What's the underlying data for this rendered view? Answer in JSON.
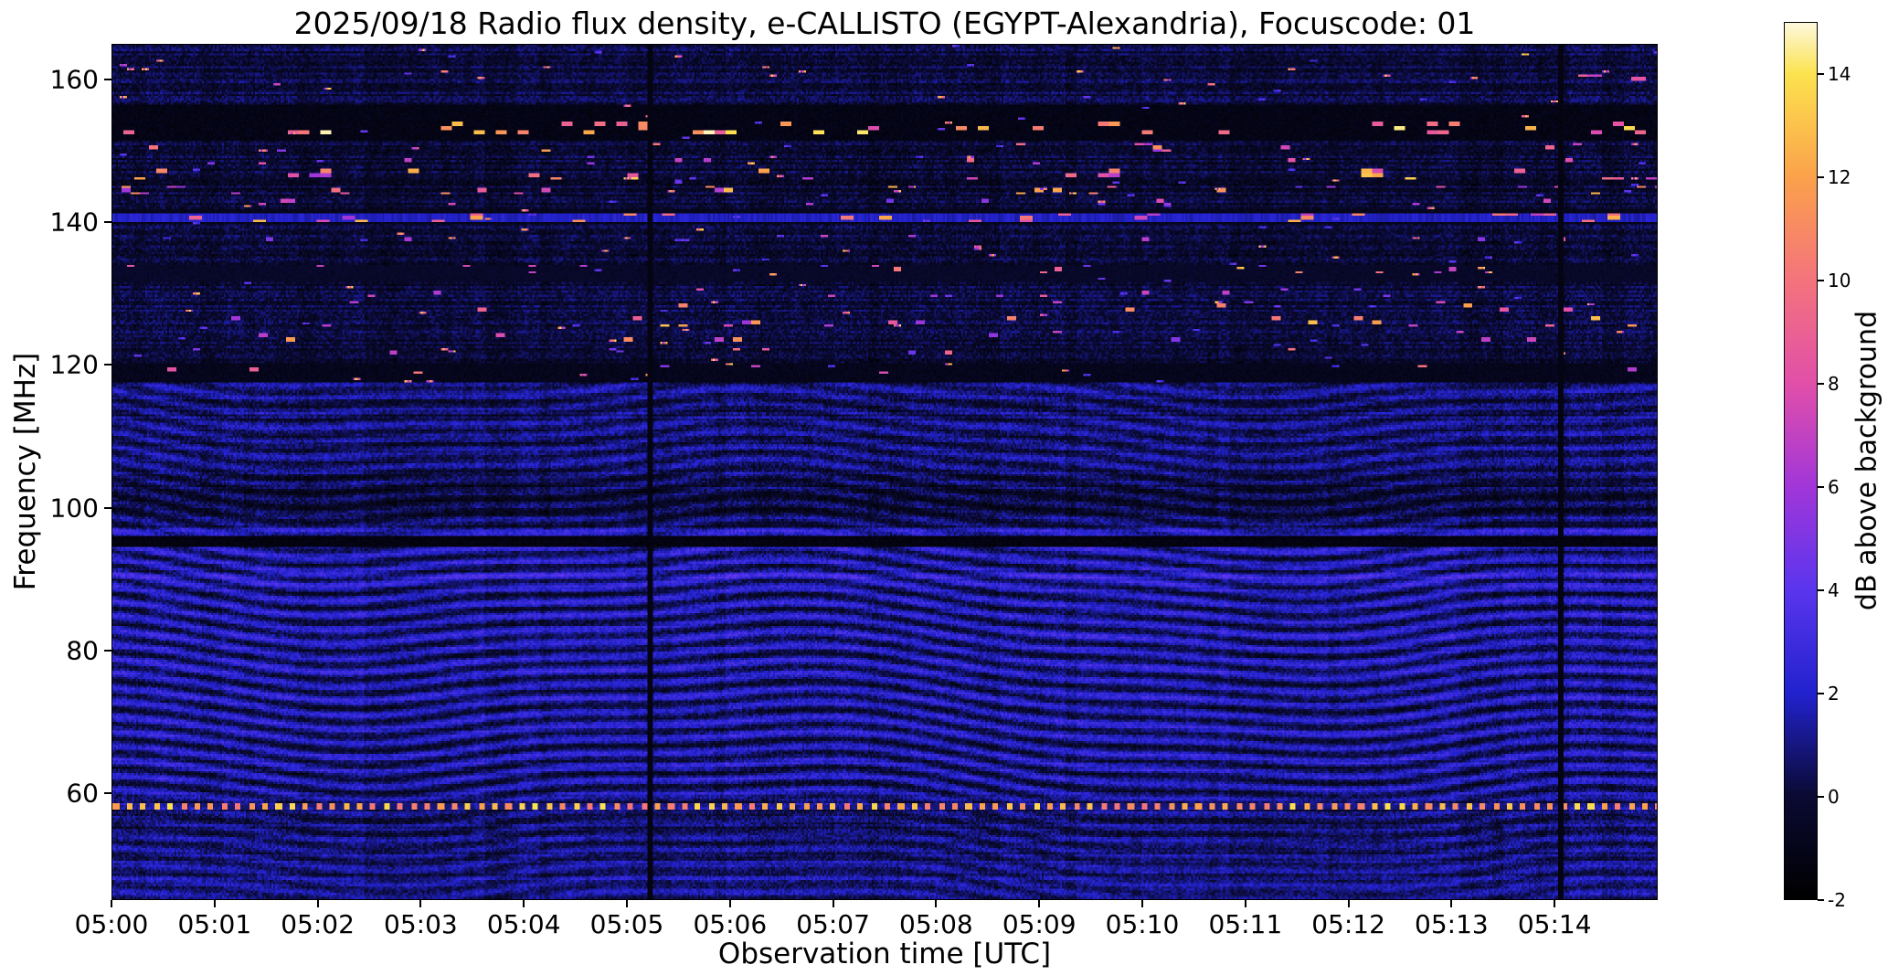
{
  "chart_data": {
    "type": "heatmap",
    "title": "2025/09/18  Radio flux density, e-CALLISTO (EGYPT-Alexandria), Focuscode: 01",
    "xlabel": "Observation time [UTC]",
    "ylabel": "Frequency [MHz]",
    "x_range_minutes": [
      0,
      15
    ],
    "y_range_mhz": [
      45,
      165
    ],
    "x_ticks": [
      {
        "t": 0,
        "label": "05:00"
      },
      {
        "t": 1,
        "label": "05:01"
      },
      {
        "t": 2,
        "label": "05:02"
      },
      {
        "t": 3,
        "label": "05:03"
      },
      {
        "t": 4,
        "label": "05:04"
      },
      {
        "t": 5,
        "label": "05:05"
      },
      {
        "t": 6,
        "label": "05:06"
      },
      {
        "t": 7,
        "label": "05:07"
      },
      {
        "t": 8,
        "label": "05:08"
      },
      {
        "t": 9,
        "label": "05:09"
      },
      {
        "t": 10,
        "label": "05:10"
      },
      {
        "t": 11,
        "label": "05:11"
      },
      {
        "t": 12,
        "label": "05:12"
      },
      {
        "t": 13,
        "label": "05:13"
      },
      {
        "t": 14,
        "label": "05:14"
      }
    ],
    "y_ticks": [
      {
        "f": 160,
        "label": "160"
      },
      {
        "f": 140,
        "label": "140"
      },
      {
        "f": 120,
        "label": "120"
      },
      {
        "f": 100,
        "label": "100"
      },
      {
        "f": 80,
        "label": "80"
      },
      {
        "f": 60,
        "label": "60"
      }
    ],
    "colorbar": {
      "label": "dB above background",
      "range": [
        -2,
        15
      ],
      "ticks": [
        {
          "v": 14,
          "label": "14"
        },
        {
          "v": 12,
          "label": "12"
        },
        {
          "v": 10,
          "label": "10"
        },
        {
          "v": 8,
          "label": "8"
        },
        {
          "v": 6,
          "label": "6"
        },
        {
          "v": 4,
          "label": "4"
        },
        {
          "v": 2,
          "label": "2"
        },
        {
          "v": 0,
          "label": "0"
        },
        {
          "v": -2,
          "label": "-2"
        }
      ],
      "colormap_stops": [
        {
          "value": -2,
          "color": "#000000"
        },
        {
          "value": 0,
          "color": "#0a0a33"
        },
        {
          "value": 2,
          "color": "#2222cf"
        },
        {
          "value": 4,
          "color": "#5a35ee"
        },
        {
          "value": 6,
          "color": "#a136d9"
        },
        {
          "value": 8,
          "color": "#e14fa9"
        },
        {
          "value": 10,
          "color": "#f4737c"
        },
        {
          "value": 12,
          "color": "#fba14b"
        },
        {
          "value": 14,
          "color": "#fce24e"
        },
        {
          "value": 15,
          "color": "#fdf8dc"
        }
      ]
    },
    "features": {
      "interference_ripple_range_mhz": [
        45,
        117.5
      ],
      "bright_dotted_line_mhz": 58,
      "dotted_line_dots_per_minute": 7.6,
      "vertical_interference_lines_minutes": [
        5.22,
        14.08
      ],
      "dark_bands_mhz": [
        {
          "f0": 151.7,
          "f1": 156.6,
          "base": -1.5
        },
        {
          "f0": 139.9,
          "f1": 141.9,
          "base": -1.15
        },
        {
          "f0": 117.7,
          "f1": 120.4,
          "base": -1.25
        },
        {
          "f0": 131.9,
          "f1": 134.3,
          "base": -0.75
        },
        {
          "f0": 94.4,
          "f1": 95.9,
          "base": -1.7
        }
      ],
      "soft_bands": [
        {
          "f0": 120.4,
          "f1": 131.9,
          "add": -0.3
        },
        {
          "f0": 133.0,
          "f1": 152.0,
          "add": -0.45
        },
        {
          "f0": 98.0,
          "f1": 104.6,
          "add": -0.5
        },
        {
          "f0": 59.5,
          "f1": 95.5,
          "add": 0.25
        },
        {
          "f0": 156.6,
          "f1": 165.0,
          "add": -0.2
        }
      ],
      "bright_rows": [
        {
          "f": 96.6,
          "hw": 0.5,
          "add": 1.3
        },
        {
          "f": 90.4,
          "hw": 0.35,
          "add": 0.6
        },
        {
          "f": 47.9,
          "hw": 0.4,
          "add": 0.5
        }
      ],
      "speckle_lines": [
        {
          "f": 160.4,
          "hw": 0.5,
          "density": 0.5,
          "vmin": 7,
          "vmax": 12,
          "dash": 8,
          "t0": 14.25,
          "t1": 14.95
        },
        {
          "f": 153.3,
          "hw": 0.9,
          "density": 0.085,
          "vmin": 7,
          "vmax": 15,
          "dash": 6
        },
        {
          "f": 150.6,
          "hw": 0.6,
          "density": 0.035,
          "vmin": 5,
          "vmax": 12,
          "dash": 5
        },
        {
          "f": 148.8,
          "hw": 0.5,
          "density": 0.03,
          "vmin": 4,
          "vmax": 10,
          "dash": 4
        },
        {
          "f": 146.9,
          "hw": 0.7,
          "density": 0.07,
          "vmin": 6,
          "vmax": 14,
          "dash": 6
        },
        {
          "f": 144.7,
          "hw": 0.6,
          "density": 0.05,
          "vmin": 5,
          "vmax": 13,
          "dash": 5
        },
        {
          "f": 143.1,
          "hw": 0.4,
          "density": 0.03,
          "vmin": 4,
          "vmax": 9,
          "dash": 4
        },
        {
          "f": 140.8,
          "hw": 0.55,
          "density": 0.06,
          "vmin": 6,
          "vmax": 13,
          "dash": 7,
          "base": 2.4
        },
        {
          "f": 137.9,
          "hw": 0.4,
          "density": 0.015,
          "vmin": 4,
          "vmax": 9,
          "dash": 4
        },
        {
          "f": 133.6,
          "hw": 0.5,
          "density": 0.02,
          "vmin": 4,
          "vmax": 11,
          "dash": 4
        },
        {
          "f": 130.3,
          "hw": 0.5,
          "density": 0.02,
          "vmin": 4,
          "vmax": 10,
          "dash": 4
        },
        {
          "f": 128.4,
          "hw": 0.7,
          "density": 0.03,
          "vmin": 5,
          "vmax": 12,
          "dash": 5
        },
        {
          "f": 126.2,
          "hw": 0.8,
          "density": 0.035,
          "vmin": 5,
          "vmax": 13,
          "dash": 5
        },
        {
          "f": 124.1,
          "hw": 0.8,
          "density": 0.03,
          "vmin": 5,
          "vmax": 12,
          "dash": 5
        },
        {
          "f": 121.9,
          "hw": 0.5,
          "density": 0.02,
          "vmin": 4,
          "vmax": 10,
          "dash": 4
        },
        {
          "f": 119.4,
          "hw": 0.6,
          "density": 0.03,
          "vmin": 5,
          "vmax": 12,
          "dash": 5
        }
      ]
    }
  }
}
